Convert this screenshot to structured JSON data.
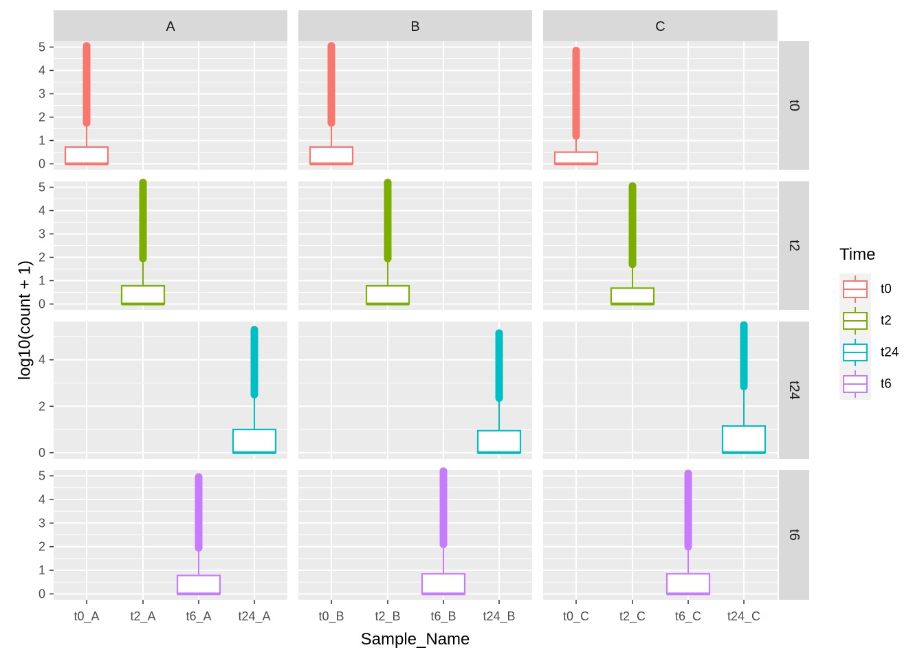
{
  "chart_data": {
    "type": "box",
    "facet_columns": [
      "A",
      "B",
      "C"
    ],
    "facet_rows": [
      "t0",
      "t2",
      "t24",
      "t6"
    ],
    "xlabel": "Sample_Name",
    "ylabel": "log10(count + 1)",
    "x_tick_labels": {
      "A": [
        "t0_A",
        "t2_A",
        "t6_A",
        "t24_A"
      ],
      "B": [
        "t0_B",
        "t2_B",
        "t6_B",
        "t24_B"
      ],
      "C": [
        "t0_C",
        "t2_C",
        "t6_C",
        "t24_C"
      ]
    },
    "y_axes": {
      "t0": {
        "ylim": [
          -0.25,
          5.25
        ],
        "ticks": [
          "0",
          "1",
          "2",
          "3",
          "4",
          "5"
        ],
        "tick_values": [
          0,
          1,
          2,
          3,
          4,
          5
        ]
      },
      "t2": {
        "ylim": [
          -0.25,
          5.25
        ],
        "ticks": [
          "0",
          "1",
          "2",
          "3",
          "4",
          "5"
        ],
        "tick_values": [
          0,
          1,
          2,
          3,
          4,
          5
        ]
      },
      "t24": {
        "ylim": [
          -0.27,
          5.65
        ],
        "ticks": [
          "0",
          "2",
          "4"
        ],
        "tick_values": [
          0,
          2,
          4
        ]
      },
      "t6": {
        "ylim": [
          -0.25,
          5.25
        ],
        "ticks": [
          "0",
          "1",
          "2",
          "3",
          "4",
          "5"
        ],
        "tick_values": [
          0,
          1,
          2,
          3,
          4,
          5
        ]
      }
    },
    "grid": true,
    "legend": {
      "title": "Time",
      "placement": "right",
      "entries": [
        {
          "label": "t0",
          "color": "#F8766D"
        },
        {
          "label": "t2",
          "color": "#7CAE00"
        },
        {
          "label": "t24",
          "color": "#00BFC4"
        },
        {
          "label": "t6",
          "color": "#C77CFF"
        }
      ]
    },
    "boxes": [
      {
        "facet_row": "t0",
        "facet_col": "A",
        "sample": "t0_A",
        "x_index": 0,
        "min": 0,
        "q1": 0,
        "median": 0,
        "q3": 0.72,
        "whisker_high": 1.75,
        "outliers_from": 1.75,
        "outliers_to": 5.05
      },
      {
        "facet_row": "t0",
        "facet_col": "B",
        "sample": "t0_B",
        "x_index": 0,
        "min": 0,
        "q1": 0,
        "median": 0,
        "q3": 0.72,
        "whisker_high": 1.75,
        "outliers_from": 1.75,
        "outliers_to": 5.05
      },
      {
        "facet_row": "t0",
        "facet_col": "C",
        "sample": "t0_C",
        "x_index": 0,
        "min": 0,
        "q1": 0,
        "median": 0,
        "q3": 0.5,
        "whisker_high": 1.2,
        "outliers_from": 1.2,
        "outliers_to": 4.85
      },
      {
        "facet_row": "t2",
        "facet_col": "A",
        "sample": "t2_A",
        "x_index": 1,
        "min": 0,
        "q1": 0,
        "median": 0,
        "q3": 0.78,
        "whisker_high": 1.95,
        "outliers_from": 1.95,
        "outliers_to": 5.2
      },
      {
        "facet_row": "t2",
        "facet_col": "B",
        "sample": "t2_B",
        "x_index": 1,
        "min": 0,
        "q1": 0,
        "median": 0,
        "q3": 0.78,
        "whisker_high": 1.95,
        "outliers_from": 1.95,
        "outliers_to": 5.2
      },
      {
        "facet_row": "t2",
        "facet_col": "C",
        "sample": "t2_C",
        "x_index": 1,
        "min": 0,
        "q1": 0,
        "median": 0,
        "q3": 0.68,
        "whisker_high": 1.7,
        "outliers_from": 1.7,
        "outliers_to": 5.05
      },
      {
        "facet_row": "t24",
        "facet_col": "A",
        "sample": "t24_A",
        "x_index": 3,
        "min": 0,
        "q1": 0,
        "median": 0,
        "q3": 1.0,
        "whisker_high": 2.5,
        "outliers_from": 2.5,
        "outliers_to": 5.3
      },
      {
        "facet_row": "t24",
        "facet_col": "B",
        "sample": "t24_B",
        "x_index": 3,
        "min": 0,
        "q1": 0,
        "median": 0,
        "q3": 0.95,
        "whisker_high": 2.35,
        "outliers_from": 2.35,
        "outliers_to": 5.15
      },
      {
        "facet_row": "t24",
        "facet_col": "C",
        "sample": "t24_C",
        "x_index": 3,
        "min": 0,
        "q1": 0,
        "median": 0,
        "q3": 1.15,
        "whisker_high": 2.85,
        "outliers_from": 2.85,
        "outliers_to": 5.5
      },
      {
        "facet_row": "t6",
        "facet_col": "A",
        "sample": "t6_A",
        "x_index": 2,
        "min": 0,
        "q1": 0,
        "median": 0,
        "q3": 0.78,
        "whisker_high": 1.95,
        "outliers_from": 1.95,
        "outliers_to": 4.95
      },
      {
        "facet_row": "t6",
        "facet_col": "B",
        "sample": "t6_B",
        "x_index": 2,
        "min": 0,
        "q1": 0,
        "median": 0,
        "q3": 0.85,
        "whisker_high": 2.1,
        "outliers_from": 2.1,
        "outliers_to": 5.2
      },
      {
        "facet_row": "t6",
        "facet_col": "C",
        "sample": "t6_C",
        "x_index": 2,
        "min": 0,
        "q1": 0,
        "median": 0,
        "q3": 0.85,
        "whisker_high": 2.0,
        "outliers_from": 2.0,
        "outliers_to": 5.1
      }
    ]
  }
}
